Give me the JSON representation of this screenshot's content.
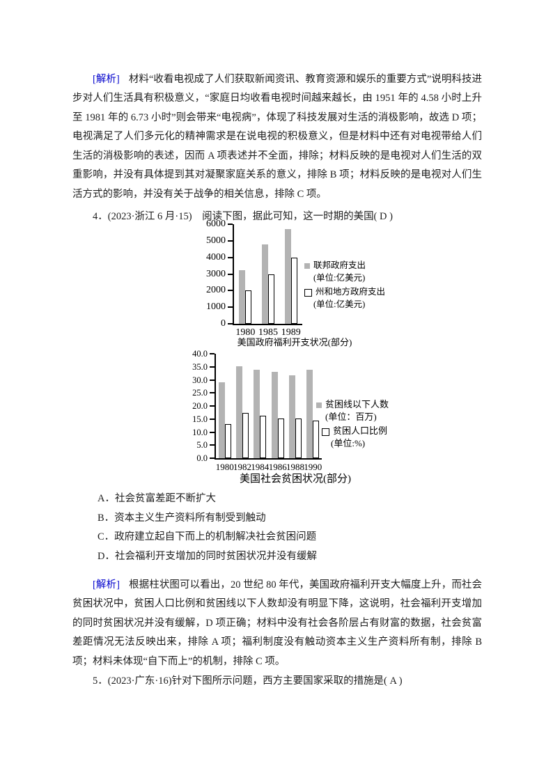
{
  "doc": {
    "analysis_q3": {
      "label": "[解析]",
      "text": "材料“收看电视成了人们获取新闻资讯、教育资源和娱乐的重要方式”说明科技进步对人们生活具有积极意义，“家庭日均收看电视时间越来越长，由 1951 年的 4.58 小时上升至 1981 年的 6.73 小时”则会带来“电视病”，体现了科技发展对生活的消极影响，故选 D 项；电视满足了人们多元化的精神需求是在说电视的积极意义，但是材料中还有对电视带给人们生活的消极影响的表述，因而 A 项表述并不全面，排除；材料反映的是电视对人们生活的双重影响，并没有具体提到其对凝聚家庭关系的意义，排除 B 项；材料反映的是电视对人们生活方式的影响，并没有关于战争的相关信息，排除 C 项。"
    },
    "question4": "4．(2023·浙江 6 月·15)　阅读下图，据此可知，这一时期的美国( D )",
    "options4": [
      "A．社会贫富差距不断扩大",
      "B．资本主义生产资料所有制受到触动",
      "C．政府建立起自下而上的机制解决社会贫困问题",
      "D．社会福利开支增加的同时贫困状况并没有缓解"
    ],
    "analysis_q4": {
      "label": "[解析]",
      "text": "根据柱状图可以看出，20 世纪 80 年代，美国政府福利开支大幅度上升，而社会贫困状况中，贫困人口比例和贫困线以下人数却没有明显下降，这说明，社会福利开支增加的同时贫困状况并没有缓解，D 项正确；材料中没有社会各阶层占有财富的数据，社会贫富差距情况无法反映出来，排除 A 项；福利制度没有触动资本主义生产资料所有制，排除 B 项；材料未体现“自下而上”的机制，排除 C 项。"
    },
    "question5": "5．(2023·广东·16)针对下图所示问题，西方主要国家采取的措施是( A )"
  },
  "colors": {
    "analysis_label": "#0000cc",
    "bar_gray": "#b3b3b3",
    "bar_white_fill": "#ffffff",
    "axis": "#000000",
    "text": "#1c1c1c"
  },
  "chart_data": [
    {
      "type": "bar",
      "title": "美国政府福利开支状况(部分)",
      "categories": [
        "1980",
        "1985",
        "1989"
      ],
      "series": [
        {
          "name": "联邦政府支出",
          "unit": "(单位:亿美元)",
          "style": "gray",
          "values": [
            3250,
            4800,
            5700
          ]
        },
        {
          "name": "州和地方政府支出",
          "unit": "(单位:亿美元)",
          "style": "white",
          "values": [
            2000,
            3000,
            4000
          ]
        }
      ],
      "xlabel": "",
      "ylabel": "",
      "ylim": [
        0,
        6000
      ],
      "yticks": [
        "6000",
        "5000",
        "4000",
        "3000",
        "2000",
        "1000",
        "0"
      ],
      "grid": false,
      "legend_position": "right"
    },
    {
      "type": "bar",
      "title": "美国社会贫困状况(部分)",
      "categories": [
        "1980",
        "1982",
        "1984",
        "1986",
        "1988",
        "1990"
      ],
      "series": [
        {
          "name": "贫困线以下人数",
          "unit": "(单位：百万)",
          "style": "gray",
          "values": [
            29.0,
            35.2,
            33.9,
            33.0,
            31.8,
            33.9
          ]
        },
        {
          "name": "贫困人口比例",
          "unit": "(单位:%)",
          "style": "white",
          "values": [
            13.2,
            17.3,
            16.2,
            15.1,
            15.1,
            14.5
          ]
        }
      ],
      "xlabel": "",
      "ylabel": "",
      "ylim": [
        0,
        40
      ],
      "yticks": [
        "40.0",
        "35.0",
        "30.0",
        "25.0",
        "20.0",
        "15.0",
        "10.0",
        "5.0",
        "0.0"
      ],
      "grid": false,
      "legend_position": "right"
    }
  ]
}
